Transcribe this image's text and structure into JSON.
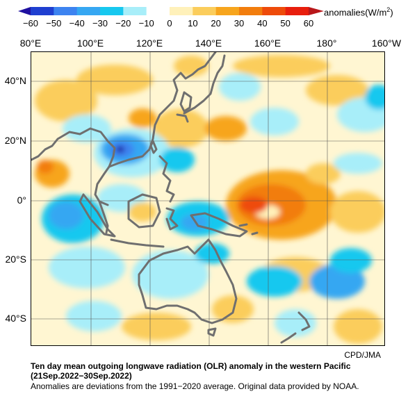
{
  "colorbar": {
    "unit_label": "anomalies(W/m",
    "unit_sup": "2",
    "unit_close": ")",
    "ticks": [
      "−60",
      "−50",
      "−40",
      "−30",
      "−20",
      "−10",
      "0",
      "10",
      "20",
      "30",
      "40",
      "50",
      "60"
    ],
    "colors": [
      "#1f3fd0",
      "#3d83f0",
      "#36a7f2",
      "#17c8ef",
      "#a8eef9",
      "#ffffff",
      "#fff1ba",
      "#fbcd5c",
      "#f7a51d",
      "#f27d0d",
      "#ee4b0a",
      "#e81e0d"
    ]
  },
  "map": {
    "lon_labels": [
      "80°E",
      "100°E",
      "120°E",
      "140°E",
      "160°E",
      "180°",
      "160°W"
    ],
    "lat_labels": [
      "40°N",
      "20°N",
      "0°",
      "20°S",
      "40°S"
    ],
    "colors": {
      "ocean_base": "#fff6d2",
      "coast": "#6f6f6f",
      "grid": "#555555"
    }
  },
  "credit": "CPD/JMA",
  "caption": {
    "title": "Ten day mean outgoing longwave radiation (OLR) anomaly in the western Pacific",
    "period": "(21Sep.2022−30Sep.2022)",
    "note": "Anomalies are deviations from the 1991−2020 average. Original data provided by NOAA."
  }
}
